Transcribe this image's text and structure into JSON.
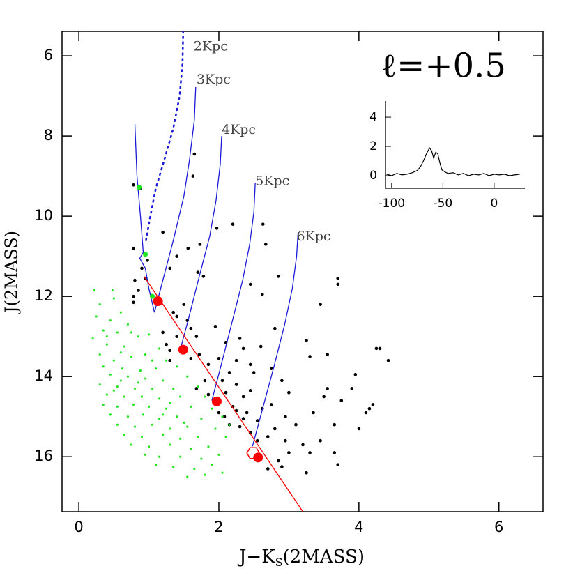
{
  "chart_data": [
    {
      "type": "scatter",
      "annotation": "ℓ=+0.5",
      "x_label_parts": [
        "J−K",
        "S",
        "(2MASS)"
      ],
      "y_label": "J(2MASS)",
      "xlim": [
        -0.24,
        6.63
      ],
      "ylim": [
        17.37,
        5.39
      ],
      "xticks": [
        0,
        2,
        4,
        6
      ],
      "yticks": [
        6,
        8,
        10,
        12,
        14,
        16
      ],
      "series": [
        {
          "style": "points",
          "color": "#000000",
          "size": 2.3,
          "x": [
            1.65,
            1.63,
            0.78,
            0.88,
            1.97,
            1.2,
            0.78,
            1.56,
            1.73,
            2.2,
            2.63,
            2.67,
            1.4,
            1.7,
            1.78,
            0.9,
            0.98,
            0.95,
            1.3,
            0.78,
            0.78,
            0.85,
            0.8,
            3.7,
            3.7,
            3.45,
            2.62,
            2.45,
            2.85,
            1.35,
            1.4,
            1.55,
            1.6,
            1.5,
            1.2,
            1.25,
            1.3,
            1.4,
            1.68,
            1.95,
            2.1,
            2.3,
            2.35,
            2.6,
            2.8,
            3.25,
            3.55,
            4.25,
            4.3,
            4.42,
            1.3,
            1.6,
            1.72,
            1.85,
            2.0,
            2.15,
            2.25,
            2.45,
            2.5,
            2.25,
            2.05,
            1.8,
            1.68,
            1.85,
            2.1,
            2.35,
            2.45,
            2.2,
            2.0,
            2.08,
            2.25,
            2.35,
            2.55,
            2.3,
            2.45,
            2.55,
            2.7,
            2.8,
            2.95,
            3.1,
            3.35,
            3.5,
            3.55,
            3.75,
            3.9,
            3.95,
            4.1,
            4.15,
            4.2,
            4.0,
            3.65,
            3.45,
            3.65,
            3.7,
            3.3,
            3.2,
            3.0,
            2.85,
            2.9,
            3.25,
            2.7,
            2.95,
            2.75,
            3.0,
            2.9,
            3.3,
            2.4,
            2.15,
            2.62,
            2.75
          ],
          "values": [
            8.45,
            9.0,
            9.22,
            9.3,
            10.3,
            10.4,
            10.8,
            10.8,
            10.7,
            10.2,
            10.2,
            10.7,
            11.0,
            11.4,
            11.5,
            11.3,
            11.1,
            11.55,
            11.3,
            12.0,
            12.15,
            11.85,
            11.6,
            11.55,
            11.7,
            12.2,
            11.95,
            11.7,
            11.5,
            12.4,
            12.5,
            12.6,
            12.8,
            12.2,
            12.9,
            13.2,
            13.35,
            13.0,
            13.0,
            12.75,
            13.15,
            13.05,
            13.3,
            13.25,
            12.8,
            13.1,
            13.45,
            13.3,
            13.3,
            13.6,
            13.6,
            13.55,
            13.45,
            13.7,
            13.55,
            13.9,
            13.6,
            13.7,
            13.9,
            14.2,
            14.1,
            14.1,
            14.3,
            14.45,
            14.4,
            14.5,
            14.35,
            14.75,
            14.9,
            15.0,
            14.85,
            15.05,
            15.1,
            15.25,
            15.4,
            15.6,
            15.5,
            15.3,
            15.0,
            15.2,
            14.9,
            14.5,
            14.3,
            14.6,
            14.3,
            13.95,
            14.9,
            14.8,
            14.7,
            15.3,
            15.2,
            15.6,
            15.9,
            16.2,
            15.9,
            15.7,
            15.9,
            16.1,
            16.25,
            16.4,
            16.3,
            15.6,
            14.7,
            14.4,
            14.1,
            13.5,
            14.9,
            15.2,
            14.8,
            13.8
          ]
        },
        {
          "style": "points",
          "color": "#22e622",
          "size": 1.6,
          "x": [
            0.22,
            0.48,
            0.5,
            0.3,
            0.6,
            0.25,
            0.45,
            0.7,
            0.35,
            0.55,
            0.2,
            0.85,
            1.0,
            0.4,
            0.65,
            1.15,
            0.3,
            0.75,
            0.95,
            0.5,
            1.25,
            0.35,
            0.62,
            0.88,
            1.1,
            1.4,
            0.45,
            0.7,
            0.6,
            0.95,
            1.2,
            1.55,
            0.3,
            0.55,
            0.8,
            1.05,
            1.35,
            1.7,
            0.4,
            0.65,
            0.9,
            1.15,
            1.45,
            1.8,
            0.35,
            0.55,
            0.78,
            1.0,
            1.25,
            1.6,
            1.9,
            0.45,
            0.7,
            0.92,
            1.15,
            1.4,
            1.75,
            2.05,
            0.55,
            0.8,
            1.05,
            1.3,
            1.55,
            1.95,
            0.65,
            0.9,
            1.2,
            1.45,
            1.7,
            2.1,
            0.75,
            1.0,
            1.3,
            1.6,
            1.85,
            0.95,
            1.15,
            1.45,
            1.75,
            2.0,
            1.1,
            1.35,
            1.65,
            1.9,
            1.55,
            1.8,
            2.05,
            0.5,
            0.85,
            1.3,
            0.6,
            1.05,
            1.5,
            0.4,
            0.75,
            2.15,
            1.2
          ],
          "values": [
            11.85,
            11.85,
            12.05,
            12.2,
            12.4,
            12.5,
            12.6,
            12.7,
            12.85,
            12.9,
            13.05,
            13.0,
            12.95,
            13.2,
            13.25,
            13.3,
            13.45,
            13.5,
            13.45,
            13.6,
            13.6,
            13.75,
            13.8,
            13.85,
            13.8,
            13.75,
            13.95,
            14.0,
            14.1,
            14.05,
            14.1,
            14.0,
            14.2,
            14.25,
            14.3,
            14.3,
            14.3,
            14.25,
            14.45,
            14.5,
            14.5,
            14.55,
            14.5,
            14.5,
            14.7,
            14.75,
            14.7,
            14.75,
            14.8,
            14.75,
            14.8,
            14.95,
            15.0,
            14.95,
            15.05,
            15.0,
            15.05,
            15.0,
            15.2,
            15.25,
            15.2,
            15.3,
            15.25,
            15.3,
            15.45,
            15.5,
            15.45,
            15.55,
            15.5,
            15.5,
            15.7,
            15.75,
            15.7,
            15.8,
            15.75,
            15.95,
            16.0,
            16.0,
            16.05,
            15.95,
            16.2,
            16.25,
            16.3,
            16.2,
            16.5,
            16.45,
            16.4,
            14.35,
            14.15,
            14.65,
            13.4,
            13.6,
            15.15,
            13.0,
            12.9,
            15.2,
            14.95
          ]
        },
        {
          "style": "line",
          "color": "#1a1ad6",
          "x": [
            1.08,
            1.0,
            0.95,
            0.87,
            0.92,
            0.88,
            0.83,
            0.8
          ],
          "values": [
            12.4,
            11.8,
            11.3,
            11.05,
            10.9,
            10.0,
            9.0,
            7.7
          ]
        },
        {
          "style": "dotted",
          "color": "#1a1ad6",
          "name": "2Kpc",
          "x": [
            0.96,
            1.02,
            1.1,
            1.22,
            1.35,
            1.44,
            1.48,
            1.49
          ],
          "values": [
            10.6,
            10.0,
            9.3,
            8.6,
            7.8,
            7.0,
            6.2,
            5.4
          ]
        },
        {
          "style": "line",
          "color": "#1a1ad6",
          "name": "3Kpc",
          "x": [
            1.08,
            1.2,
            1.35,
            1.5,
            1.58,
            1.65,
            1.67
          ],
          "values": [
            12.4,
            11.6,
            10.6,
            9.5,
            8.6,
            7.6,
            6.78
          ]
        },
        {
          "style": "line",
          "color": "#1a1ad6",
          "name": "4Kpc",
          "x": [
            1.44,
            1.56,
            1.72,
            1.87,
            1.96,
            2.02,
            2.04
          ],
          "values": [
            13.39,
            12.6,
            11.5,
            10.5,
            9.6,
            8.7,
            8.0
          ]
        },
        {
          "style": "line",
          "color": "#1a1ad6",
          "name": "5Kpc",
          "x": [
            1.9,
            2.02,
            2.18,
            2.34,
            2.44,
            2.5,
            2.52
          ],
          "values": [
            14.6,
            13.8,
            12.7,
            11.6,
            10.7,
            9.9,
            9.17
          ]
        },
        {
          "style": "line",
          "color": "#1a1ad6",
          "name": "6Kpc",
          "x": [
            2.48,
            2.61,
            2.78,
            2.94,
            3.05,
            3.11,
            3.13
          ],
          "values": [
            15.74,
            14.9,
            13.8,
            12.7,
            11.8,
            11.0,
            10.43
          ]
        },
        {
          "style": "line",
          "color": "#ff0000",
          "x": [
            0.93,
            3.2
          ],
          "values": [
            11.5,
            17.37
          ]
        },
        {
          "style": "points",
          "color": "#22e622",
          "size": 3.6,
          "x": [
            0.86,
            0.95,
            1.05
          ],
          "values": [
            9.28,
            10.95,
            12.0
          ]
        },
        {
          "style": "points",
          "color": "#ff0000",
          "size": 7,
          "x": [
            1.13,
            1.49,
            1.97,
            2.56
          ],
          "values": [
            12.12,
            13.33,
            14.62,
            16.02
          ]
        },
        {
          "style": "hexagon",
          "color": "#ff0000",
          "size": 9,
          "x": [
            2.49
          ],
          "values": [
            15.91
          ]
        }
      ]
    },
    {
      "type": "line",
      "color": "#000000",
      "xlim": [
        -106,
        30
      ],
      "ylim": [
        -0.86,
        5.1
      ],
      "xticks": [
        -100,
        -50,
        0
      ],
      "yticks": [
        0,
        2,
        4
      ],
      "x": [
        -105,
        -100,
        -95,
        -90,
        -85,
        -80,
        -75,
        -72,
        -69,
        -66,
        -63,
        -61,
        -59,
        -57,
        -55,
        -53,
        -51,
        -48,
        -45,
        -40,
        -35,
        -30,
        -25,
        -20,
        -15,
        -10,
        -5,
        0,
        5,
        10,
        15,
        20,
        25
      ],
      "values": [
        0.1,
        0.0,
        0.15,
        0.05,
        0.1,
        0.2,
        0.35,
        0.6,
        1.0,
        1.5,
        1.9,
        1.7,
        1.2,
        1.6,
        1.5,
        0.9,
        0.4,
        0.25,
        0.15,
        0.2,
        0.05,
        0.15,
        0.0,
        0.1,
        0.05,
        0.15,
        0.0,
        0.1,
        0.05,
        0.1,
        0.0,
        0.05,
        0.1
      ]
    }
  ]
}
